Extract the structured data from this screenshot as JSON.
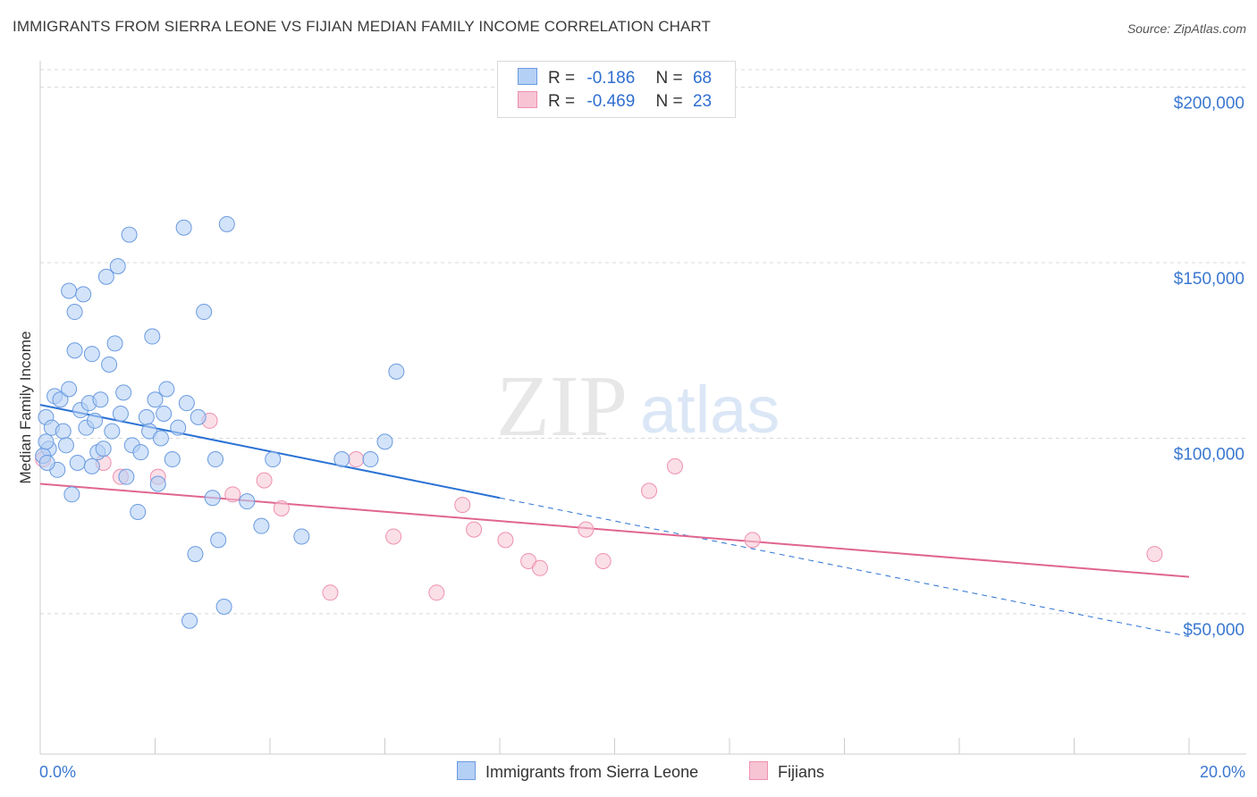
{
  "title": "IMMIGRANTS FROM SIERRA LEONE VS FIJIAN MEDIAN FAMILY INCOME CORRELATION CHART",
  "source": "Source: ZipAtlas.com",
  "watermark": {
    "zip": "ZIP",
    "atlas": "atlas"
  },
  "legend": {
    "r_label": "R =",
    "n_label": "N =",
    "series": [
      {
        "r": "-0.186",
        "n": "68"
      },
      {
        "r": "-0.469",
        "n": "23"
      }
    ]
  },
  "bottom_legend": [
    "Immigrants from Sierra Leone",
    "Fijians"
  ],
  "colors": {
    "blue_fill": "#b5d0f5",
    "blue_stroke": "#6a9be0",
    "blue_line": "#2a72d4",
    "pink_fill": "#f7c4d4",
    "pink_stroke": "#ee90b0",
    "pink_line": "#e0668f",
    "tick_label": "#3a78d0",
    "grid": "#d8d8d8"
  },
  "chart_data": {
    "type": "scatter",
    "title": "IMMIGRANTS FROM SIERRA LEONE VS FIJIAN MEDIAN FAMILY INCOME CORRELATION CHART",
    "xlabel": "",
    "ylabel": "Median Family Income",
    "xlim": [
      0,
      20
    ],
    "ylim": [
      10000,
      205000
    ],
    "x_tick_labels": [
      "0.0%",
      "20.0%"
    ],
    "y_ticks": [
      50000,
      100000,
      150000,
      200000
    ],
    "y_tick_labels": [
      "$50,000",
      "$100,000",
      "$150,000",
      "$200,000"
    ],
    "series": [
      {
        "name": "Immigrants from Sierra Leone",
        "r": -0.186,
        "n": 68,
        "trend": {
          "x0": 0,
          "y0": 109500,
          "x1": 8,
          "y1": 83000,
          "dash_to_x": 20,
          "dash_to_y": 43500
        },
        "points": [
          [
            0.1,
            106
          ],
          [
            0.15,
            97
          ],
          [
            0.2,
            103
          ],
          [
            0.25,
            112
          ],
          [
            0.3,
            91
          ],
          [
            0.35,
            111
          ],
          [
            0.4,
            102
          ],
          [
            0.45,
            98
          ],
          [
            0.5,
            114
          ],
          [
            0.5,
            142
          ],
          [
            0.55,
            84
          ],
          [
            0.6,
            125
          ],
          [
            0.6,
            136
          ],
          [
            0.65,
            93
          ],
          [
            0.7,
            108
          ],
          [
            0.75,
            141
          ],
          [
            0.8,
            103
          ],
          [
            0.85,
            110
          ],
          [
            0.9,
            124
          ],
          [
            0.9,
            92
          ],
          [
            0.95,
            105
          ],
          [
            1.0,
            96
          ],
          [
            1.05,
            111
          ],
          [
            1.1,
            97
          ],
          [
            1.15,
            146
          ],
          [
            1.2,
            121
          ],
          [
            1.25,
            102
          ],
          [
            1.3,
            127
          ],
          [
            1.35,
            149
          ],
          [
            1.4,
            107
          ],
          [
            1.45,
            113
          ],
          [
            1.5,
            89
          ],
          [
            1.55,
            158
          ],
          [
            1.6,
            98
          ],
          [
            1.7,
            79
          ],
          [
            1.75,
            96
          ],
          [
            1.85,
            106
          ],
          [
            1.9,
            102
          ],
          [
            1.95,
            129
          ],
          [
            2.0,
            111
          ],
          [
            2.05,
            87
          ],
          [
            2.1,
            100
          ],
          [
            2.15,
            107
          ],
          [
            2.2,
            114
          ],
          [
            2.3,
            94
          ],
          [
            2.4,
            103
          ],
          [
            2.5,
            160
          ],
          [
            2.55,
            110
          ],
          [
            2.7,
            67
          ],
          [
            2.75,
            106
          ],
          [
            2.85,
            136
          ],
          [
            3.0,
            83
          ],
          [
            3.05,
            94
          ],
          [
            3.1,
            71
          ],
          [
            3.2,
            52
          ],
          [
            3.25,
            161
          ],
          [
            3.6,
            82
          ],
          [
            3.85,
            75
          ],
          [
            4.05,
            94
          ],
          [
            4.55,
            72
          ],
          [
            2.6,
            48
          ],
          [
            5.25,
            94
          ],
          [
            5.75,
            94
          ],
          [
            6.0,
            99
          ],
          [
            6.2,
            119
          ],
          [
            0.05,
            95
          ],
          [
            0.1,
            99
          ],
          [
            0.12,
            93
          ]
        ]
      },
      {
        "name": "Fijians",
        "r": -0.469,
        "n": 23,
        "trend": {
          "x0": 0,
          "y0": 87000,
          "x1": 20,
          "y1": 60500
        },
        "points": [
          [
            0.05,
            94
          ],
          [
            1.1,
            93
          ],
          [
            1.4,
            89
          ],
          [
            2.05,
            89
          ],
          [
            2.95,
            105
          ],
          [
            3.35,
            84
          ],
          [
            3.9,
            88
          ],
          [
            4.2,
            80
          ],
          [
            5.05,
            56
          ],
          [
            5.5,
            94
          ],
          [
            6.15,
            72
          ],
          [
            6.9,
            56
          ],
          [
            7.35,
            81
          ],
          [
            7.55,
            74
          ],
          [
            8.1,
            71
          ],
          [
            8.5,
            65
          ],
          [
            8.7,
            63
          ],
          [
            9.5,
            74
          ],
          [
            9.8,
            65
          ],
          [
            10.6,
            85
          ],
          [
            11.05,
            92
          ],
          [
            12.4,
            71
          ],
          [
            19.4,
            67
          ]
        ]
      }
    ]
  }
}
